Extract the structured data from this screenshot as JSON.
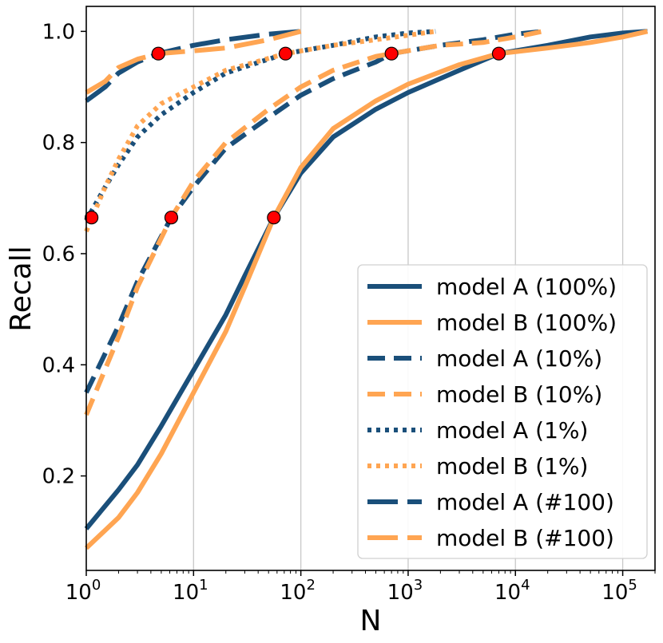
{
  "chart_data": {
    "type": "line",
    "xscale": "log",
    "xlabel": "N",
    "ylabel": "Recall",
    "xlim": [
      1,
      200000
    ],
    "ylim": [
      0.03,
      1.045
    ],
    "grid": "x-major",
    "legend_position": "lower-right",
    "xticks": [
      {
        "value": 1,
        "base": "10",
        "exp": "0"
      },
      {
        "value": 10,
        "base": "10",
        "exp": "1"
      },
      {
        "value": 100,
        "base": "10",
        "exp": "2"
      },
      {
        "value": 1000,
        "base": "10",
        "exp": "3"
      },
      {
        "value": 10000,
        "base": "10",
        "exp": "4"
      },
      {
        "value": 100000,
        "base": "10",
        "exp": "5"
      }
    ],
    "yticks": [
      {
        "value": 0.2,
        "label": "0.2"
      },
      {
        "value": 0.4,
        "label": "0.4"
      },
      {
        "value": 0.6,
        "label": "0.6"
      },
      {
        "value": 0.8,
        "label": "0.8"
      },
      {
        "value": 1.0,
        "label": "1.0"
      }
    ],
    "series": [
      {
        "name": "model A (100%)",
        "color": "#1a4f7a",
        "dash": "solid",
        "points": [
          [
            1,
            0.105
          ],
          [
            2,
            0.175
          ],
          [
            3,
            0.22
          ],
          [
            5,
            0.29
          ],
          [
            10,
            0.39
          ],
          [
            20,
            0.49
          ],
          [
            30,
            0.56
          ],
          [
            56,
            0.665
          ],
          [
            100,
            0.745
          ],
          [
            200,
            0.81
          ],
          [
            500,
            0.86
          ],
          [
            1000,
            0.89
          ],
          [
            3000,
            0.93
          ],
          [
            7000,
            0.96
          ],
          [
            20000,
            0.975
          ],
          [
            50000,
            0.99
          ],
          [
            100000,
            0.997
          ],
          [
            170000,
            1.0
          ]
        ]
      },
      {
        "name": "model B (100%)",
        "color": "#ffa552",
        "dash": "solid",
        "points": [
          [
            1,
            0.07
          ],
          [
            2,
            0.125
          ],
          [
            3,
            0.17
          ],
          [
            5,
            0.24
          ],
          [
            10,
            0.35
          ],
          [
            20,
            0.46
          ],
          [
            30,
            0.54
          ],
          [
            56,
            0.665
          ],
          [
            100,
            0.755
          ],
          [
            200,
            0.825
          ],
          [
            500,
            0.875
          ],
          [
            1000,
            0.905
          ],
          [
            3000,
            0.94
          ],
          [
            7000,
            0.96
          ],
          [
            20000,
            0.97
          ],
          [
            50000,
            0.98
          ],
          [
            100000,
            0.99
          ],
          [
            170000,
            1.0
          ]
        ]
      },
      {
        "name": "model A (10%)",
        "color": "#1a4f7a",
        "dash": "dashed",
        "points": [
          [
            1,
            0.35
          ],
          [
            2,
            0.47
          ],
          [
            3,
            0.55
          ],
          [
            6.2,
            0.665
          ],
          [
            10,
            0.72
          ],
          [
            20,
            0.79
          ],
          [
            50,
            0.845
          ],
          [
            100,
            0.885
          ],
          [
            200,
            0.915
          ],
          [
            500,
            0.945
          ],
          [
            700,
            0.96
          ],
          [
            2000,
            0.975
          ],
          [
            5000,
            0.985
          ],
          [
            10000,
            0.995
          ],
          [
            18000,
            1.0
          ]
        ]
      },
      {
        "name": "model B (10%)",
        "color": "#ffa552",
        "dash": "dashed",
        "points": [
          [
            1,
            0.31
          ],
          [
            2,
            0.45
          ],
          [
            3,
            0.54
          ],
          [
            6.2,
            0.665
          ],
          [
            10,
            0.73
          ],
          [
            20,
            0.8
          ],
          [
            50,
            0.86
          ],
          [
            100,
            0.9
          ],
          [
            200,
            0.93
          ],
          [
            500,
            0.955
          ],
          [
            700,
            0.96
          ],
          [
            2000,
            0.975
          ],
          [
            5000,
            0.98
          ],
          [
            10000,
            0.99
          ],
          [
            18000,
            1.0
          ]
        ]
      },
      {
        "name": "model A (1%)",
        "color": "#1a4f7a",
        "dash": "dotted",
        "points": [
          [
            1,
            0.66
          ],
          [
            1.5,
            0.72
          ],
          [
            2,
            0.76
          ],
          [
            3,
            0.81
          ],
          [
            5,
            0.85
          ],
          [
            10,
            0.89
          ],
          [
            20,
            0.925
          ],
          [
            72,
            0.96
          ],
          [
            200,
            0.975
          ],
          [
            500,
            0.99
          ],
          [
            1000,
            0.997
          ],
          [
            1800,
            1.0
          ]
        ]
      },
      {
        "name": "model B (1%)",
        "color": "#ffa552",
        "dash": "dotted",
        "points": [
          [
            1,
            0.64
          ],
          [
            1.5,
            0.72
          ],
          [
            2,
            0.77
          ],
          [
            3,
            0.83
          ],
          [
            5,
            0.87
          ],
          [
            10,
            0.9
          ],
          [
            20,
            0.93
          ],
          [
            72,
            0.96
          ],
          [
            200,
            0.975
          ],
          [
            500,
            0.985
          ],
          [
            1000,
            0.993
          ],
          [
            1800,
            1.0
          ]
        ]
      },
      {
        "name": "model A (#100)",
        "color": "#1a4f7a",
        "dash": "longdash",
        "points": [
          [
            1,
            0.875
          ],
          [
            1.5,
            0.9
          ],
          [
            2,
            0.925
          ],
          [
            3,
            0.945
          ],
          [
            4.7,
            0.96
          ],
          [
            10,
            0.975
          ],
          [
            20,
            0.985
          ],
          [
            50,
            0.995
          ],
          [
            100,
            1.0
          ]
        ]
      },
      {
        "name": "model B (#100)",
        "color": "#ffa552",
        "dash": "longdash",
        "points": [
          [
            1,
            0.89
          ],
          [
            1.5,
            0.91
          ],
          [
            2,
            0.935
          ],
          [
            3,
            0.95
          ],
          [
            4.7,
            0.96
          ],
          [
            10,
            0.965
          ],
          [
            20,
            0.97
          ],
          [
            50,
            0.985
          ],
          [
            100,
            1.0
          ]
        ]
      }
    ],
    "markers": {
      "color": "#ff0000",
      "points": [
        [
          1.12,
          0.665
        ],
        [
          6.2,
          0.665
        ],
        [
          56,
          0.665
        ],
        [
          4.7,
          0.96
        ],
        [
          72,
          0.96
        ],
        [
          700,
          0.96
        ],
        [
          7000,
          0.96
        ]
      ]
    }
  }
}
